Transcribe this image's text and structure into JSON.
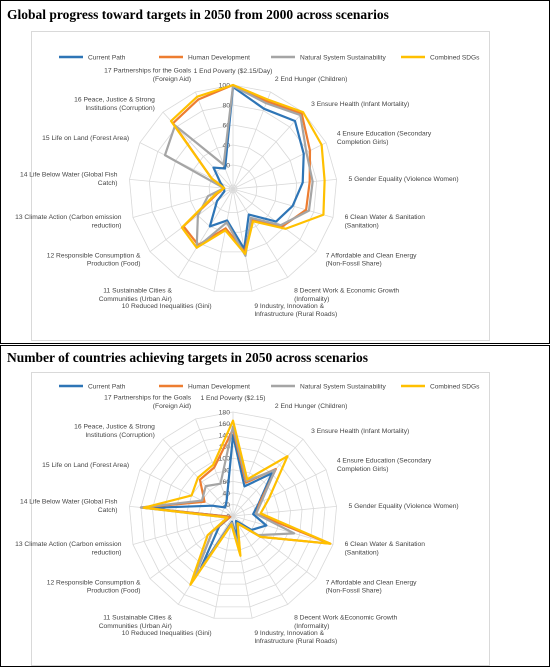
{
  "chart_data": [
    {
      "type": "radar",
      "title": "Global progress toward targets in 2050 from 2000 across scenarios",
      "rlim": [
        0,
        100
      ],
      "ticks": [
        0,
        20,
        40,
        60,
        80,
        100
      ],
      "tick_labels": [
        "",
        "20",
        "40",
        "60",
        "80",
        "100"
      ],
      "grid": true,
      "legend_position": "top",
      "categories": [
        "1 End Poverty ($2.15/Day)",
        "2 End  Hunger (Children)",
        "3 Ensure Health (Infant Mortality)",
        "4 Ensure Education (Secondary Completion Girls)",
        "5 Gender Equality (Violence Women)",
        "6 Clean Water & Sanitation (Sanitation)",
        "7 Affordable and Clean Energy (Non-Fossil Share)",
        "8 Decent Work & Economic Growth (Informality)",
        "9 Industry, Innovation & Infrastructure (Rural Roads)",
        "10 Reduced Inequalities (Gini)",
        "11 Sustainable Cities & Communities (Urban Air)",
        "12 Responsible Consumption & Production (Food)",
        "13 Climate Action (Carbon emission reduction)",
        "14 Life Below Water (Global Fish Catch)",
        "15 Life on Land (Forest Area)",
        "16 Peace, Justice & Strong Institutions (Corruption)",
        "17 Partnerships for the Goals (Foreign Aid)"
      ],
      "series": [
        {
          "name": "Current Path",
          "color": "#2e75b6",
          "values": [
            98,
            82,
            88,
            75,
            66,
            58,
            50,
            26,
            57,
            28,
            40,
            16,
            5,
            5,
            10,
            25,
            18
          ]
        },
        {
          "name": "Human Development",
          "color": "#ed7d31",
          "values": [
            100,
            90,
            98,
            82,
            73,
            72,
            58,
            32,
            60,
            36,
            62,
            58,
            12,
            5,
            20,
            85,
            92
          ]
        },
        {
          "name": "Natural System Sustainability",
          "color": "#a5a5a5",
          "values": [
            99,
            88,
            96,
            78,
            76,
            75,
            56,
            30,
            64,
            30,
            65,
            40,
            22,
            5,
            72,
            82,
            22
          ]
        },
        {
          "name": "Combined SDGs",
          "color": "#ffc000",
          "values": [
            100,
            92,
            100,
            95,
            88,
            90,
            62,
            34,
            62,
            38,
            65,
            60,
            14,
            5,
            20,
            88,
            95
          ]
        }
      ]
    },
    {
      "type": "radar",
      "title": "Number of countries achieving targets in 2050 across scenarios",
      "rlim": [
        0,
        180
      ],
      "ticks": [
        0,
        20,
        40,
        60,
        80,
        100,
        120,
        140,
        160,
        180
      ],
      "tick_labels": [
        "0",
        "20",
        "40",
        "60",
        "80",
        "100",
        "120",
        "140",
        "160",
        "180"
      ],
      "grid": true,
      "legend_position": "top",
      "categories": [
        "1 End Poverty ($2.15)",
        "2 End  Hunger (Children)",
        "3 Ensure Health (Infant Mortality)",
        "4 Ensure Education (Secondary Completion Girls)",
        "5 Gender Equality (Violence Women)",
        "6 Clean Water & Sanitation (Sanitation)",
        "7 Affordable and Clean Energy (Non-Fossil Share)",
        "8 Decent Work &Economic Growth (Informality)",
        "9 Industry, Innovation & Infrastructure (Rural Roads)",
        "10 Reduced Inequalities (Gini)",
        "11 Sustainable Cities & Communities (Urban Air)",
        "12 Responsible Consumption & Production (Food)",
        "13 Climate Action (Carbon emission reduction)",
        "14 Life Below Water (Global Fish Catch)",
        "15 Life on Land (Forest Area)",
        "16 Peace, Justice & Strong Institutions (Corruption)",
        "17 Partnerships for the Goals (Foreign Aid)"
      ],
      "series": [
        {
          "name": "Current Path",
          "color": "#2e75b6",
          "values": [
            140,
            55,
            100,
            50,
            35,
            60,
            40,
            10,
            45,
            10,
            105,
            30,
            5,
            150,
            40,
            20,
            30
          ]
        },
        {
          "name": "Human Development",
          "color": "#ed7d31",
          "values": [
            150,
            62,
            110,
            52,
            40,
            175,
            60,
            15,
            65,
            12,
            130,
            45,
            5,
            160,
            55,
            85,
            90
          ]
        },
        {
          "name": "Natural System Sustainability",
          "color": "#a5a5a5",
          "values": [
            155,
            65,
            108,
            55,
            40,
            110,
            55,
            15,
            60,
            12,
            130,
            45,
            10,
            160,
            60,
            70,
            60
          ]
        },
        {
          "name": "Combined SDGs",
          "color": "#ffc000",
          "values": [
            165,
            68,
            140,
            70,
            48,
            175,
            60,
            15,
            70,
            15,
            140,
            55,
            10,
            155,
            80,
            90,
            95
          ]
        }
      ]
    }
  ]
}
